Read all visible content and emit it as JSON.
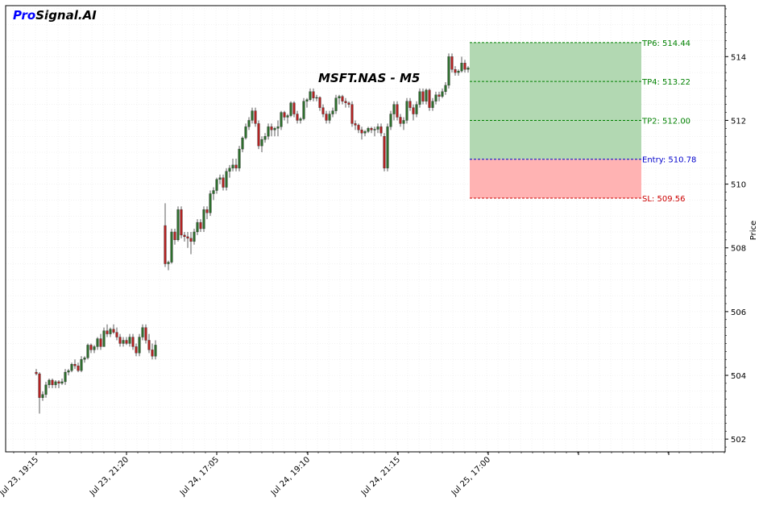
{
  "brand": {
    "pro": "Pro",
    "rest": "Signal.AI",
    "pro_color": "#0000ff"
  },
  "chart_data": {
    "type": "candlestick",
    "title": "MSFT.NAS - M5",
    "ylabel": "Price",
    "ylim": [
      501.6,
      515.6
    ],
    "yticks": [
      502,
      504,
      506,
      508,
      510,
      512,
      514
    ],
    "xticks": [
      "Jul 23, 19:15",
      "Jul 23, 21:20",
      "Jul 24, 17:05",
      "Jul 24, 19:10",
      "Jul 24, 21:15",
      "Jul 25, 17:00"
    ],
    "grid": true,
    "colors": {
      "up": "#2d6e2d",
      "down": "#b22222",
      "profit_zone": "#b2d8b2",
      "loss_zone": "#ffb3b3"
    },
    "levels": [
      {
        "label": "TP6: 514.44",
        "value": 514.44,
        "color": "#008000"
      },
      {
        "label": "TP4: 513.22",
        "value": 513.22,
        "color": "#008000"
      },
      {
        "label": "TP2: 512.00",
        "value": 512.0,
        "color": "#008000"
      },
      {
        "label": "Entry: 510.78",
        "value": 510.78,
        "color": "#0000cc"
      },
      {
        "label": "SL: 509.56",
        "value": 509.56,
        "color": "#cc0000"
      }
    ],
    "candles": [
      [
        504.1,
        504.2,
        504.0,
        504.05
      ],
      [
        504.05,
        504.1,
        502.8,
        503.3
      ],
      [
        503.3,
        503.5,
        503.2,
        503.4
      ],
      [
        503.4,
        503.8,
        503.3,
        503.7
      ],
      [
        503.7,
        503.9,
        503.6,
        503.85
      ],
      [
        503.85,
        503.9,
        503.6,
        503.7
      ],
      [
        503.7,
        503.85,
        503.6,
        503.8
      ],
      [
        503.8,
        503.85,
        503.6,
        503.75
      ],
      [
        503.75,
        503.9,
        503.7,
        503.8
      ],
      [
        503.8,
        504.2,
        503.7,
        504.1
      ],
      [
        504.1,
        504.2,
        504.0,
        504.15
      ],
      [
        504.15,
        504.4,
        504.1,
        504.35
      ],
      [
        504.35,
        504.5,
        504.2,
        504.3
      ],
      [
        504.3,
        504.4,
        504.1,
        504.15
      ],
      [
        504.15,
        504.6,
        504.1,
        504.5
      ],
      [
        504.5,
        504.6,
        504.4,
        504.55
      ],
      [
        504.55,
        505.0,
        504.5,
        504.95
      ],
      [
        504.95,
        505.0,
        504.7,
        504.8
      ],
      [
        504.8,
        504.95,
        504.7,
        504.9
      ],
      [
        504.9,
        505.2,
        504.8,
        505.15
      ],
      [
        505.15,
        505.3,
        504.8,
        504.9
      ],
      [
        504.9,
        505.5,
        504.9,
        505.4
      ],
      [
        505.4,
        505.6,
        505.2,
        505.3
      ],
      [
        505.3,
        505.5,
        505.2,
        505.45
      ],
      [
        505.45,
        505.6,
        505.3,
        505.35
      ],
      [
        505.35,
        505.5,
        505.1,
        505.2
      ],
      [
        505.2,
        505.3,
        504.9,
        505.0
      ],
      [
        505.0,
        505.2,
        504.9,
        505.1
      ],
      [
        505.1,
        505.2,
        504.95,
        505.0
      ],
      [
        505.0,
        505.3,
        504.9,
        505.2
      ],
      [
        505.2,
        505.3,
        504.8,
        504.9
      ],
      [
        504.9,
        505.0,
        504.6,
        504.7
      ],
      [
        504.7,
        505.3,
        504.6,
        505.2
      ],
      [
        505.2,
        505.6,
        505.1,
        505.5
      ],
      [
        505.5,
        505.6,
        505.0,
        505.1
      ],
      [
        505.1,
        505.3,
        504.7,
        504.8
      ],
      [
        504.8,
        505.0,
        504.5,
        504.6
      ],
      [
        504.6,
        505.1,
        504.5,
        504.95
      ],
      [
        508.7,
        509.4,
        507.4,
        507.5
      ],
      [
        507.5,
        507.6,
        507.3,
        507.55
      ],
      [
        507.55,
        508.6,
        507.5,
        508.5
      ],
      [
        508.5,
        508.6,
        508.1,
        508.25
      ],
      [
        508.25,
        509.3,
        508.2,
        509.2
      ],
      [
        509.2,
        509.3,
        508.3,
        508.4
      ],
      [
        508.4,
        508.5,
        508.2,
        508.35
      ],
      [
        508.35,
        508.5,
        508.0,
        508.3
      ],
      [
        508.3,
        508.5,
        507.8,
        508.2
      ],
      [
        508.2,
        508.6,
        508.1,
        508.5
      ],
      [
        508.5,
        508.9,
        508.4,
        508.8
      ],
      [
        508.8,
        508.9,
        508.5,
        508.6
      ],
      [
        508.6,
        509.3,
        508.5,
        509.2
      ],
      [
        509.2,
        509.3,
        508.9,
        509.1
      ],
      [
        509.1,
        509.8,
        509.0,
        509.7
      ],
      [
        509.7,
        509.9,
        509.5,
        509.8
      ],
      [
        509.8,
        510.2,
        509.7,
        510.15
      ],
      [
        510.15,
        510.3,
        510.0,
        510.2
      ],
      [
        510.2,
        510.3,
        509.8,
        509.9
      ],
      [
        509.9,
        510.5,
        509.8,
        510.4
      ],
      [
        510.4,
        510.6,
        510.2,
        510.5
      ],
      [
        510.5,
        510.8,
        510.4,
        510.6
      ],
      [
        510.6,
        510.8,
        510.4,
        510.5
      ],
      [
        510.5,
        511.2,
        510.4,
        511.1
      ],
      [
        511.1,
        511.5,
        511.0,
        511.45
      ],
      [
        511.45,
        511.9,
        511.4,
        511.8
      ],
      [
        511.8,
        512.1,
        511.7,
        512.0
      ],
      [
        512.0,
        512.4,
        511.9,
        512.3
      ],
      [
        512.3,
        512.4,
        511.8,
        511.9
      ],
      [
        511.9,
        512.0,
        511.1,
        511.2
      ],
      [
        511.2,
        511.5,
        511.0,
        511.4
      ],
      [
        511.4,
        511.6,
        511.3,
        511.5
      ],
      [
        511.5,
        511.9,
        511.4,
        511.8
      ],
      [
        511.8,
        511.9,
        511.5,
        511.7
      ],
      [
        511.7,
        511.8,
        511.5,
        511.75
      ],
      [
        511.75,
        512.0,
        511.5,
        511.8
      ],
      [
        511.8,
        512.3,
        511.7,
        512.25
      ],
      [
        512.25,
        512.3,
        512.0,
        512.1
      ],
      [
        512.1,
        512.2,
        511.9,
        512.15
      ],
      [
        512.15,
        512.6,
        512.1,
        512.55
      ],
      [
        512.55,
        512.6,
        512.1,
        512.2
      ],
      [
        512.2,
        512.3,
        511.9,
        512.0
      ],
      [
        512.0,
        512.1,
        511.9,
        512.05
      ],
      [
        512.05,
        512.7,
        512.0,
        512.6
      ],
      [
        512.6,
        512.7,
        512.4,
        512.65
      ],
      [
        512.65,
        513.0,
        512.6,
        512.9
      ],
      [
        512.9,
        513.0,
        512.6,
        512.7
      ],
      [
        512.7,
        512.8,
        512.6,
        512.72
      ],
      [
        512.72,
        512.75,
        512.3,
        512.4
      ],
      [
        512.4,
        512.5,
        512.1,
        512.2
      ],
      [
        512.2,
        512.3,
        511.9,
        512.0
      ],
      [
        512.0,
        512.3,
        511.9,
        512.2
      ],
      [
        512.2,
        512.4,
        512.1,
        512.3
      ],
      [
        512.3,
        512.8,
        512.2,
        512.7
      ],
      [
        512.7,
        512.8,
        512.5,
        512.75
      ],
      [
        512.75,
        512.8,
        512.5,
        512.6
      ],
      [
        512.6,
        512.7,
        512.4,
        512.55
      ],
      [
        512.55,
        512.6,
        512.4,
        512.5
      ],
      [
        512.5,
        512.6,
        511.8,
        511.9
      ],
      [
        511.9,
        512.0,
        511.7,
        511.85
      ],
      [
        511.85,
        511.9,
        511.6,
        511.7
      ],
      [
        511.7,
        511.8,
        511.4,
        511.6
      ],
      [
        511.6,
        511.7,
        511.5,
        511.65
      ],
      [
        511.65,
        511.8,
        511.6,
        511.75
      ],
      [
        511.75,
        511.8,
        511.6,
        511.7
      ],
      [
        511.7,
        511.8,
        511.5,
        511.72
      ],
      [
        511.72,
        511.9,
        511.6,
        511.8
      ],
      [
        511.8,
        511.9,
        511.5,
        511.6
      ],
      [
        511.5,
        511.6,
        510.4,
        510.5
      ],
      [
        510.5,
        511.9,
        510.4,
        511.8
      ],
      [
        511.8,
        512.3,
        511.7,
        512.2
      ],
      [
        512.2,
        512.6,
        512.0,
        512.5
      ],
      [
        512.5,
        512.6,
        512.0,
        512.1
      ],
      [
        512.1,
        512.2,
        511.8,
        511.9
      ],
      [
        511.9,
        512.1,
        511.7,
        512.0
      ],
      [
        512.0,
        512.7,
        511.9,
        512.6
      ],
      [
        512.6,
        512.7,
        512.3,
        512.4
      ],
      [
        512.4,
        512.5,
        512.0,
        512.2
      ],
      [
        512.2,
        512.6,
        512.1,
        512.5
      ],
      [
        512.5,
        513.0,
        512.4,
        512.9
      ],
      [
        512.9,
        513.0,
        512.5,
        512.6
      ],
      [
        512.6,
        513.0,
        512.5,
        512.95
      ],
      [
        512.95,
        513.0,
        512.3,
        512.4
      ],
      [
        512.4,
        512.7,
        512.3,
        512.6
      ],
      [
        512.6,
        512.9,
        512.5,
        512.8
      ],
      [
        512.8,
        512.9,
        512.6,
        512.75
      ],
      [
        512.75,
        513.0,
        512.7,
        512.9
      ],
      [
        512.9,
        513.2,
        512.8,
        513.1
      ],
      [
        513.1,
        514.1,
        513.0,
        514.0
      ],
      [
        514.0,
        514.1,
        513.5,
        513.6
      ],
      [
        513.6,
        513.7,
        513.4,
        513.5
      ],
      [
        513.5,
        513.6,
        513.4,
        513.55
      ],
      [
        513.55,
        514.0,
        513.5,
        513.8
      ],
      [
        513.8,
        513.9,
        513.5,
        513.6
      ],
      [
        513.6,
        513.7,
        513.5,
        513.65
      ]
    ]
  }
}
